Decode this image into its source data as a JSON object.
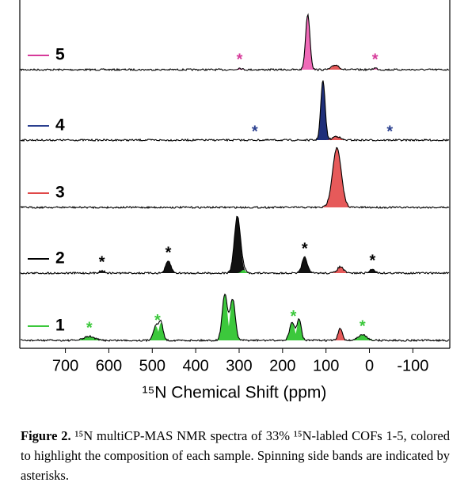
{
  "chart_data": {
    "type": "nmr-stack",
    "xlabel": "¹⁵N Chemical Shift (ppm)",
    "xlim": [
      805,
      -185
    ],
    "xticks": [
      700,
      600,
      500,
      400,
      300,
      200,
      100,
      0,
      -100
    ],
    "series": [
      {
        "name": "5",
        "color": "#d63a9a",
        "peaks": [
          {
            "ppm": 142,
            "height": 70,
            "width": 5,
            "fill": "#f06ab8"
          },
          {
            "ppm": 78,
            "height": 6,
            "width": 8,
            "fill": "#e65a5a"
          },
          {
            "ppm": 299,
            "height": 2,
            "width": 5,
            "fill": "#f06ab8"
          },
          {
            "ppm": -13,
            "height": 2,
            "width": 5,
            "fill": "#f06ab8"
          }
        ],
        "asterisks": [
          299,
          -13
        ]
      },
      {
        "name": "4",
        "color": "#2a3f8f",
        "peaks": [
          {
            "ppm": 107,
            "height": 75,
            "width": 5,
            "fill": "#1f2f7a"
          },
          {
            "ppm": 76,
            "height": 5,
            "width": 8,
            "fill": "#e65a5a"
          }
        ],
        "asterisks": [
          264,
          -47
        ]
      },
      {
        "name": "3",
        "color": "#e04848",
        "peaks": [
          {
            "ppm": 75,
            "height": 75,
            "width": 10,
            "fill": "#e65a5a"
          }
        ],
        "asterisks": []
      },
      {
        "name": "2",
        "color": "#000000",
        "peaks": [
          {
            "ppm": 616,
            "height": 3,
            "width": 6,
            "fill": "#222222"
          },
          {
            "ppm": 463,
            "height": 15,
            "width": 6,
            "fill": "#111111"
          },
          {
            "ppm": 304,
            "height": 72,
            "width": 7,
            "fill": "#111111"
          },
          {
            "ppm": 290,
            "height": 4,
            "width": 5,
            "fill": "#3cc83c"
          },
          {
            "ppm": 149,
            "height": 20,
            "width": 6,
            "fill": "#111111"
          },
          {
            "ppm": 67,
            "height": 8,
            "width": 7,
            "fill": "#e65a5a"
          },
          {
            "ppm": -7,
            "height": 5,
            "width": 6,
            "fill": "#111111"
          }
        ],
        "asterisks": [
          616,
          463,
          149,
          -7
        ]
      },
      {
        "name": "1",
        "color": "#3cc83c",
        "peaks": [
          {
            "ppm": 645,
            "height": 5,
            "width": 12,
            "fill": "#3cc83c"
          },
          {
            "ppm": 492,
            "height": 18,
            "width": 6,
            "fill": "#3cc83c"
          },
          {
            "ppm": 480,
            "height": 22,
            "width": 5,
            "fill": "#3cc83c"
          },
          {
            "ppm": 333,
            "height": 58,
            "width": 6,
            "fill": "#3cc83c"
          },
          {
            "ppm": 315,
            "height": 52,
            "width": 6,
            "fill": "#3cc83c"
          },
          {
            "ppm": 178,
            "height": 22,
            "width": 6,
            "fill": "#3cc83c"
          },
          {
            "ppm": 162,
            "height": 26,
            "width": 5,
            "fill": "#3cc83c"
          },
          {
            "ppm": 67,
            "height": 15,
            "width": 5,
            "fill": "#e65a5a"
          },
          {
            "ppm": 16,
            "height": 7,
            "width": 10,
            "fill": "#3cc83c"
          }
        ],
        "asterisks": [
          645,
          488,
          175,
          16
        ]
      }
    ]
  },
  "caption": {
    "label": "Figure 2.",
    "text": "¹⁵N multiCP-MAS NMR spectra of 33% ¹⁵N-labled COFs 1-5, colored to highlight the composition of each sample. Spinning side bands are indicated by asterisks."
  }
}
